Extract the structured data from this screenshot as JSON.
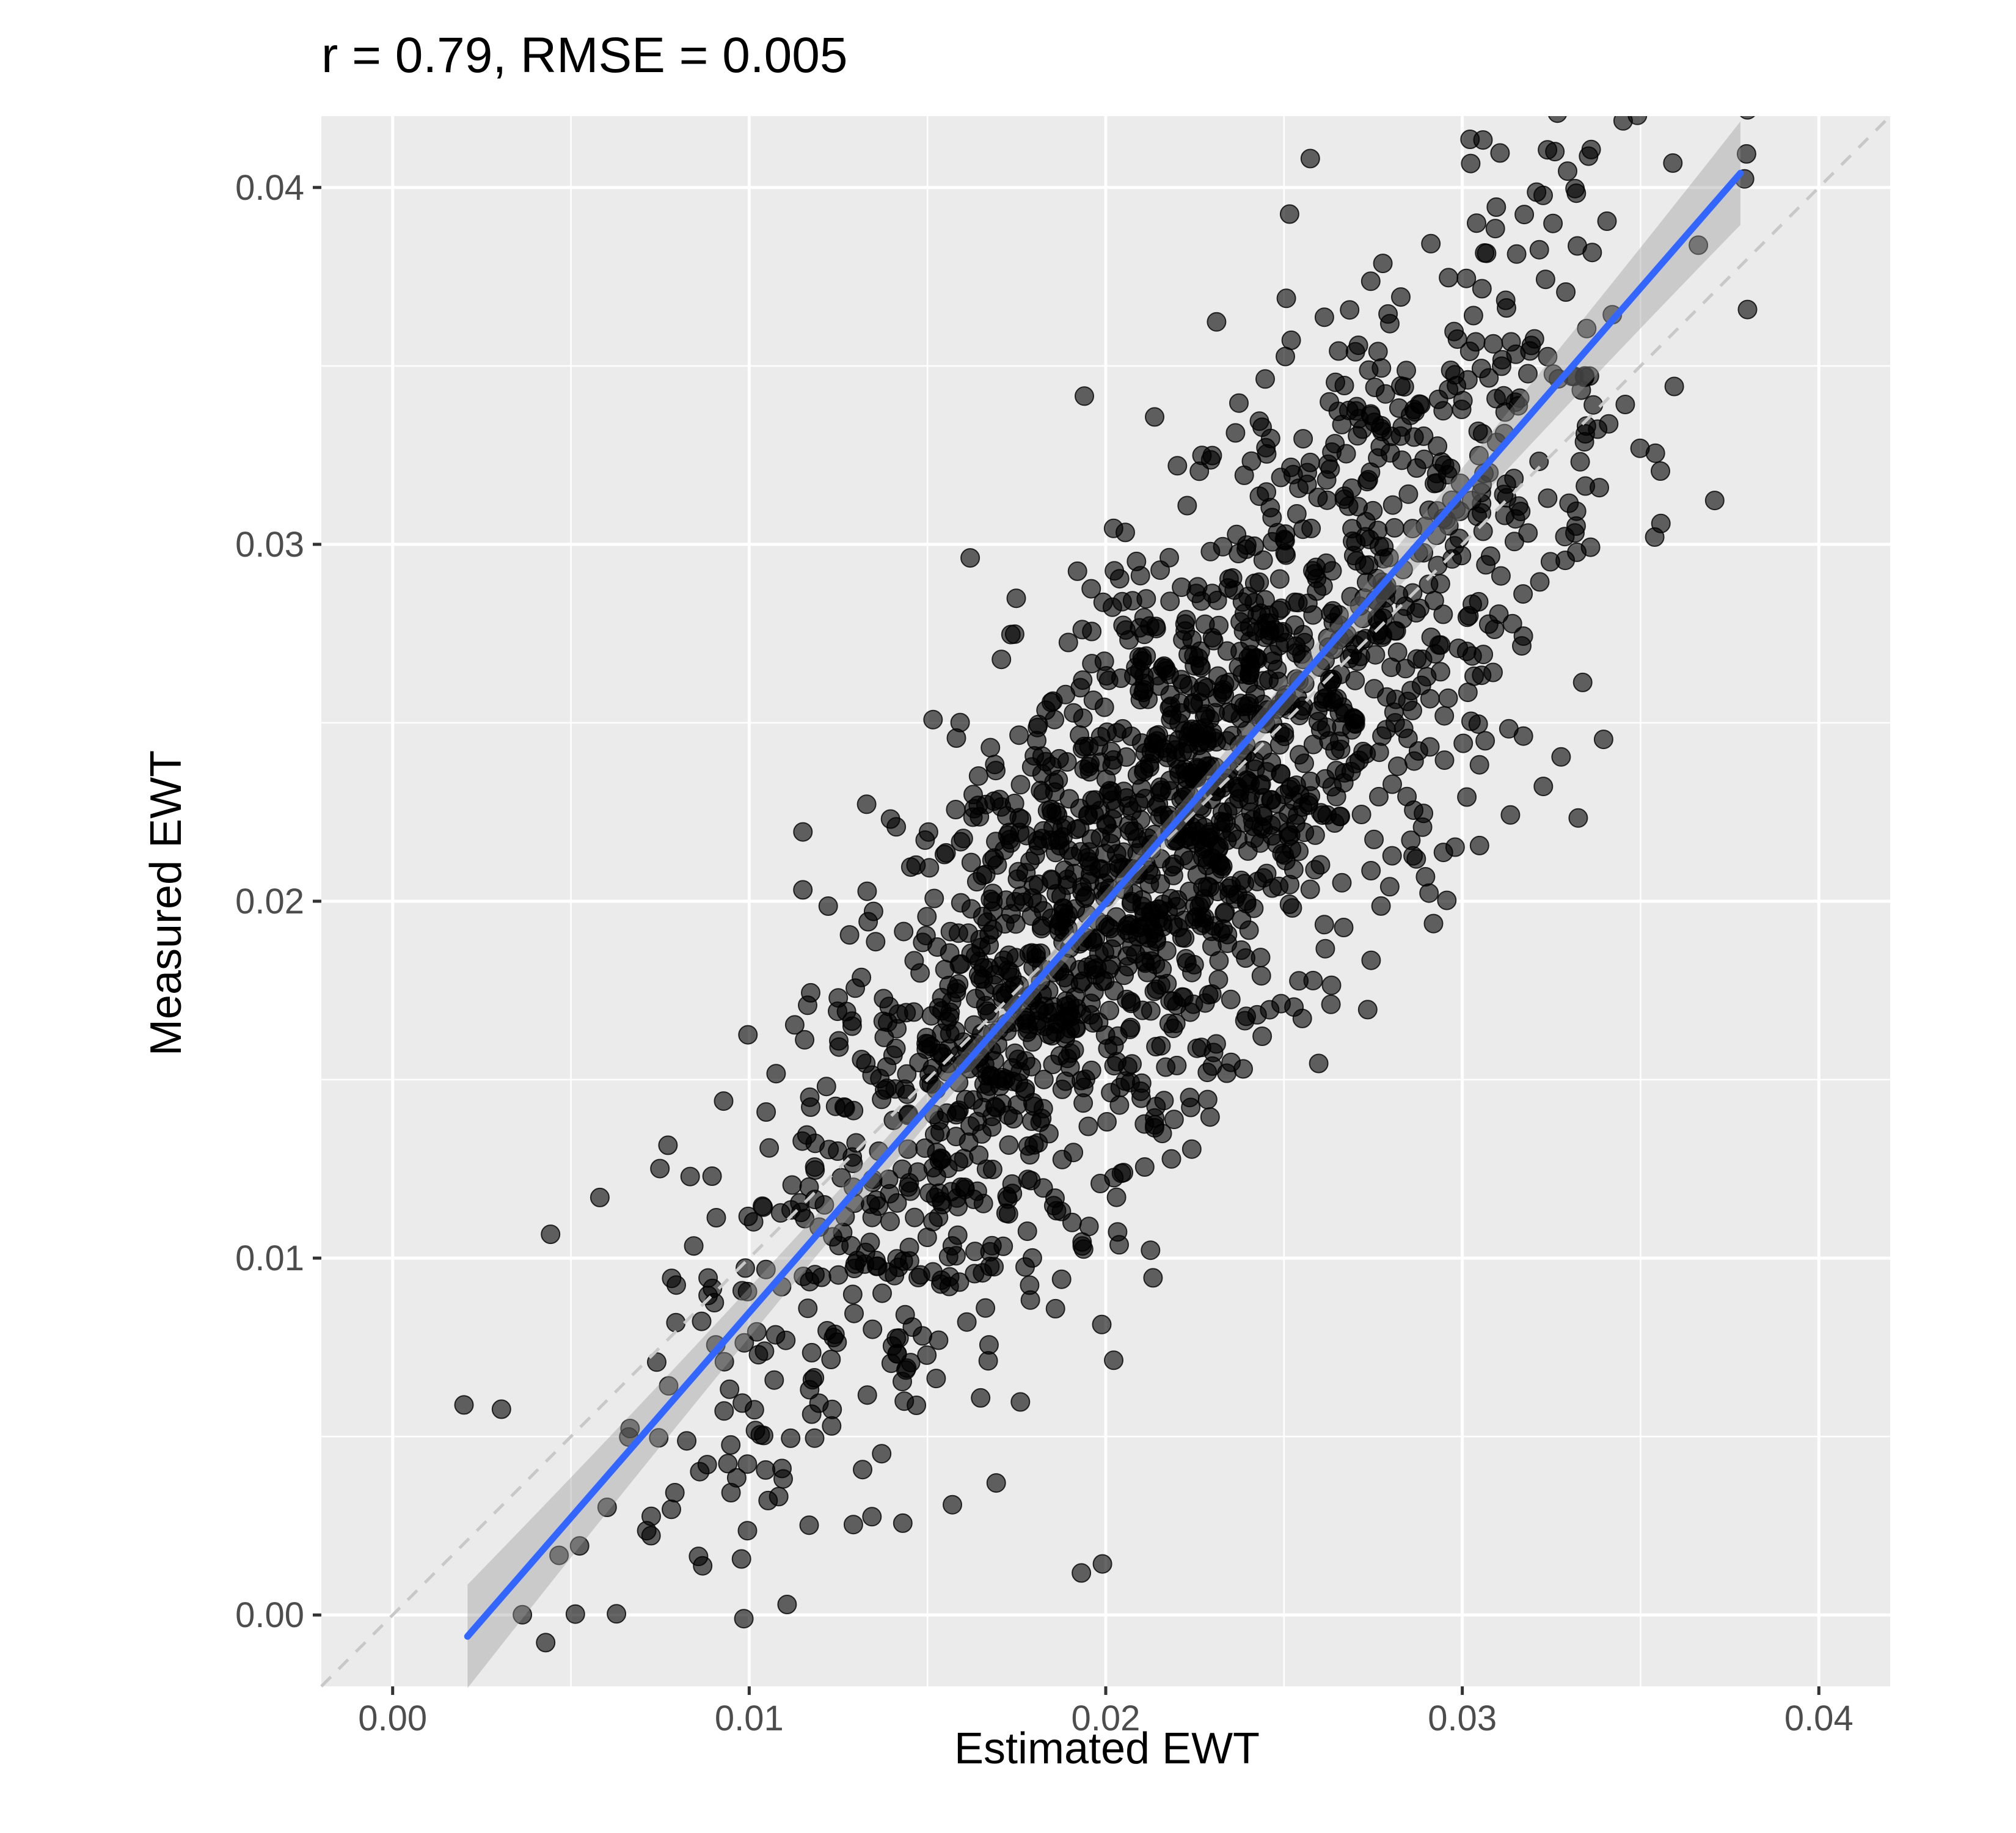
{
  "chart_data": {
    "type": "scatter",
    "title": "r = 0.79, RMSE = 0.005",
    "xlabel": "Estimated EWT",
    "ylabel": "Measured EWT",
    "xlim": [
      -0.002,
      0.042
    ],
    "ylim": [
      -0.002,
      0.042
    ],
    "x_ticks": [
      0.0,
      0.01,
      0.02,
      0.03,
      0.04
    ],
    "x_tick_labels": [
      "0.00",
      "0.01",
      "0.02",
      "0.03",
      "0.04"
    ],
    "y_ticks": [
      0.0,
      0.01,
      0.02,
      0.03,
      0.04
    ],
    "y_tick_labels": [
      "0.00",
      "0.01",
      "0.02",
      "0.03",
      "0.04"
    ],
    "grid": true,
    "panel_background": "#ebebeb",
    "grid_color": "#ffffff",
    "point_color": "#000000",
    "point_opacity": 0.6,
    "fit_line": {
      "type": "linear",
      "color": "#3366ff",
      "band_color": "#999999",
      "x": [
        0.0021,
        0.0378
      ],
      "y": [
        -0.0006,
        0.0404
      ]
    },
    "reference_line": {
      "type": "1:1",
      "style": "dashed",
      "color": "#c8c8c8"
    },
    "points_model": {
      "n": 2000,
      "x_mean": 0.0215,
      "x_sd": 0.0058,
      "x_range": [
        0.002,
        0.038
      ],
      "slope": 1.149,
      "intercept": -0.003,
      "residual_sd": 0.0045,
      "seed": 1234567
    }
  }
}
